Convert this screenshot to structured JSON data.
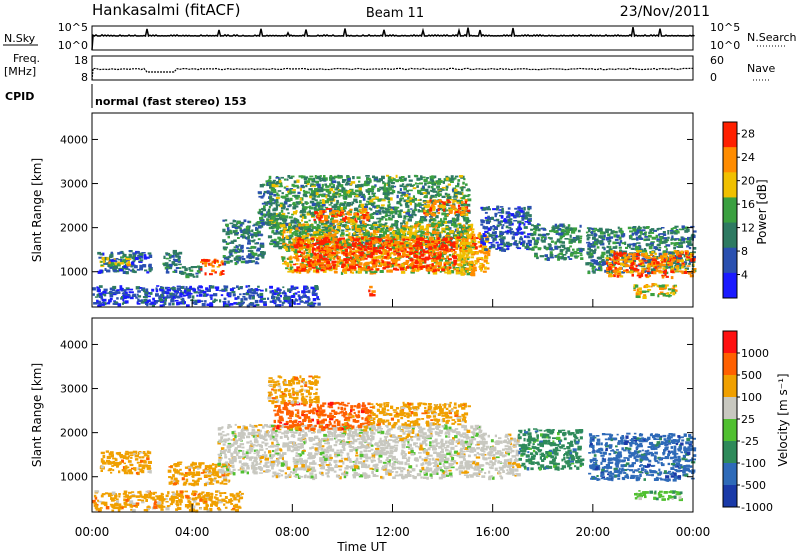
{
  "header": {
    "station": "Hankasalmi (fitACF)",
    "beam": "Beam 11",
    "date": "23/Nov/2011"
  },
  "nsky_panel": {
    "label": "N.Sky",
    "left_ticks": [
      "10^5",
      "10^0"
    ],
    "right_ticks": [
      "10^5",
      "10^0"
    ],
    "right_label": "N.Search"
  },
  "freq_panel": {
    "label": "Freq.",
    "unit": "[MHz]",
    "left_ticks": [
      "18",
      "8"
    ],
    "right_ticks": [
      "60",
      "0"
    ],
    "right_label": "Nave"
  },
  "cpid": {
    "label": "CPID",
    "text": "normal (fast stereo) 153"
  },
  "chart_data": [
    {
      "type": "heatmap",
      "name": "power",
      "ylabel": "Slant Range [km]",
      "xlabel": "",
      "x_ticks": [
        "00:00",
        "04:00",
        "08:00",
        "12:00",
        "16:00",
        "20:00",
        "00:00"
      ],
      "xlim_hours": [
        0,
        24
      ],
      "ylim": [
        200,
        4600
      ],
      "y_ticks": [
        1000,
        2000,
        3000,
        4000
      ],
      "colorbar_label": "Power [dB]",
      "colorbar_ticks": [
        28,
        24,
        20,
        16,
        12,
        8,
        4
      ],
      "colorbar_range": [
        0,
        30
      ],
      "colors": [
        "#1a1aff",
        "#2a50b0",
        "#2e7a62",
        "#3aa040",
        "#f0c000",
        "#ff8c00",
        "#ff2000"
      ],
      "regions": [
        {
          "t0": 0.2,
          "t1": 2.3,
          "r0": 1000,
          "r1": 1500,
          "level": 8
        },
        {
          "t0": 0.3,
          "t1": 1.5,
          "r0": 1150,
          "r1": 1350,
          "level": 18
        },
        {
          "t0": 2.8,
          "t1": 3.5,
          "r0": 1000,
          "r1": 1500,
          "level": 10
        },
        {
          "t0": 3.5,
          "t1": 4.3,
          "r0": 900,
          "r1": 1150,
          "level": 12
        },
        {
          "t0": 4.3,
          "t1": 5.2,
          "r0": 950,
          "r1": 1300,
          "level": 24
        },
        {
          "t0": 5.2,
          "t1": 6.8,
          "r0": 1200,
          "r1": 2200,
          "level": 10
        },
        {
          "t0": 6.6,
          "t1": 7.3,
          "r0": 2100,
          "r1": 3100,
          "level": 10
        },
        {
          "t0": 7.0,
          "t1": 15.0,
          "r0": 1550,
          "r1": 3200,
          "level": 13
        },
        {
          "t0": 7.5,
          "t1": 15.2,
          "r0": 1000,
          "r1": 2100,
          "level": 19
        },
        {
          "t0": 8.0,
          "t1": 14.5,
          "r0": 1050,
          "r1": 1800,
          "level": 27
        },
        {
          "t0": 8.8,
          "t1": 11.0,
          "r0": 2150,
          "r1": 2450,
          "level": 25
        },
        {
          "t0": 13.2,
          "t1": 15.0,
          "r0": 2300,
          "r1": 2650,
          "level": 24
        },
        {
          "t0": 14.5,
          "t1": 15.8,
          "r0": 950,
          "r1": 1900,
          "level": 22
        },
        {
          "t0": 11.0,
          "t1": 11.2,
          "r0": 400,
          "r1": 700,
          "level": 27
        },
        {
          "t0": 15.5,
          "t1": 17.5,
          "r0": 1500,
          "r1": 2500,
          "level": 7
        },
        {
          "t0": 17.5,
          "t1": 19.5,
          "r0": 1300,
          "r1": 2100,
          "level": 12
        },
        {
          "t0": 19.7,
          "t1": 24.0,
          "r0": 1000,
          "r1": 2050,
          "level": 10
        },
        {
          "t0": 20.5,
          "t1": 24.0,
          "r0": 900,
          "r1": 1500,
          "level": 24
        },
        {
          "t0": 21.5,
          "t1": 23.3,
          "r0": 450,
          "r1": 750,
          "level": 20
        },
        {
          "t0": 0.0,
          "t1": 9.0,
          "r0": 250,
          "r1": 700,
          "level": 6
        }
      ]
    },
    {
      "type": "heatmap",
      "name": "velocity",
      "ylabel": "Slant Range [km]",
      "xlabel": "Time UT",
      "x_ticks": [
        "00:00",
        "04:00",
        "08:00",
        "12:00",
        "16:00",
        "20:00",
        "00:00"
      ],
      "xlim_hours": [
        0,
        24
      ],
      "ylim": [
        200,
        4600
      ],
      "y_ticks": [
        1000,
        2000,
        3000,
        4000
      ],
      "colorbar_label": "Velocity [m s⁻¹]",
      "colorbar_ticks": [
        "1000",
        "500",
        "100",
        "25",
        "-25",
        "-100",
        "-500",
        "-1000"
      ],
      "colors": [
        "#1a3aa8",
        "#2e6ab8",
        "#2e8a5a",
        "#50c030",
        "#c8c8c0",
        "#f0a000",
        "#ff6000",
        "#ff1010"
      ],
      "regions": [
        {
          "t0": 0.3,
          "t1": 2.3,
          "r0": 1100,
          "r1": 1600,
          "level": 5
        },
        {
          "t0": 3.0,
          "t1": 5.5,
          "r0": 850,
          "r1": 1350,
          "level": 5
        },
        {
          "t0": 5.0,
          "t1": 7.0,
          "r0": 1100,
          "r1": 2200,
          "level": 4
        },
        {
          "t0": 7.0,
          "t1": 15.5,
          "r0": 1000,
          "r1": 2200,
          "level": 4
        },
        {
          "t0": 7.2,
          "t1": 11.0,
          "r0": 2100,
          "r1": 2700,
          "level": 6
        },
        {
          "t0": 11.0,
          "t1": 15.0,
          "r0": 2200,
          "r1": 2700,
          "level": 5
        },
        {
          "t0": 7.0,
          "t1": 9.0,
          "r0": 2700,
          "r1": 3300,
          "level": 5
        },
        {
          "t0": 15.5,
          "t1": 17.0,
          "r0": 1000,
          "r1": 2000,
          "level": 4
        },
        {
          "t0": 17.0,
          "t1": 19.5,
          "r0": 1200,
          "r1": 2100,
          "level": 2
        },
        {
          "t0": 19.8,
          "t1": 24.0,
          "r0": 950,
          "r1": 2000,
          "level": 1
        },
        {
          "t0": 21.5,
          "t1": 23.5,
          "r0": 500,
          "r1": 700,
          "level": 3
        },
        {
          "t0": 0.0,
          "t1": 6.0,
          "r0": 250,
          "r1": 700,
          "level": 5
        }
      ]
    }
  ]
}
